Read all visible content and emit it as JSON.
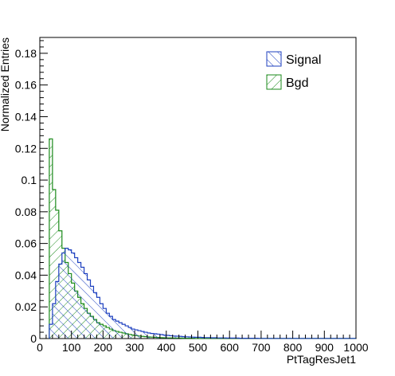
{
  "chart_data": {
    "type": "histogram",
    "title": "",
    "xlabel": "PtTagResJet1",
    "ylabel": "Normalized Entries",
    "xlim": [
      0,
      1000
    ],
    "ylim": [
      0,
      0.19
    ],
    "xticks": [
      0,
      100,
      200,
      300,
      400,
      500,
      600,
      700,
      800,
      900,
      1000
    ],
    "xtick_labels": [
      "0",
      "100",
      "200",
      "300",
      "400",
      "500",
      "600",
      "700",
      "800",
      "900",
      "1000"
    ],
    "yticks": [
      0,
      0.02,
      0.04,
      0.06,
      0.08,
      0.1,
      0.12,
      0.14,
      0.16,
      0.18
    ],
    "ytick_labels": [
      "0",
      "0.02",
      "0.04",
      "0.06",
      "0.08",
      "0.1",
      "0.12",
      "0.14",
      "0.16",
      "0.18"
    ],
    "bin_width": 10,
    "bin_start": 30,
    "legend_position": "top-right",
    "series": [
      {
        "name": "Signal",
        "color": "#1c3fbf",
        "hatch": "backslash",
        "values": [
          0.009,
          0.022,
          0.036,
          0.047,
          0.054,
          0.057,
          0.056,
          0.054,
          0.051,
          0.048,
          0.045,
          0.041,
          0.037,
          0.033,
          0.029,
          0.026,
          0.022,
          0.019,
          0.016,
          0.014,
          0.012,
          0.011,
          0.01,
          0.009,
          0.008,
          0.007,
          0.006,
          0.0055,
          0.005,
          0.0045,
          0.004,
          0.0035,
          0.0032,
          0.003,
          0.0028,
          0.0025,
          0.0022,
          0.002,
          0.0018,
          0.0016,
          0.0015,
          0.0014,
          0.0012,
          0.0011,
          0.001,
          0.0009,
          0.0008,
          0.0008,
          0.0007,
          0.0006,
          0.0006,
          0.0005,
          0.0005,
          0.0004,
          0.0004,
          0.0004,
          0.0003,
          0.0003,
          0.0003,
          0.0003,
          0.0002,
          0.0002,
          0.0002,
          0.0002,
          0.0002,
          0.0002,
          0.0001,
          0.0001,
          0.0001,
          0.0001,
          0.0001,
          0.0001,
          0.0001,
          0.0001,
          0.0001,
          0.0001,
          0.0001,
          0.0001,
          0.0001,
          0.0001,
          0.0001,
          0.0001,
          0.0001,
          0.0001,
          0.0001,
          0.0001,
          0.0001,
          0.0001,
          0.0001,
          0.0001,
          0.0001,
          0.0001,
          0.0001,
          0.0001,
          0.0001,
          0.0001,
          0.0001
        ]
      },
      {
        "name": "Bgd",
        "color": "#1a8a1a",
        "hatch": "slash",
        "values": [
          0.126,
          0.094,
          0.081,
          0.068,
          0.057,
          0.048,
          0.041,
          0.035,
          0.03,
          0.026,
          0.022,
          0.019,
          0.016,
          0.014,
          0.012,
          0.01,
          0.009,
          0.008,
          0.007,
          0.006,
          0.005,
          0.0045,
          0.004,
          0.0035,
          0.003,
          0.0026,
          0.0022,
          0.0019,
          0.0016,
          0.0014,
          0.0012,
          0.001,
          0.0009,
          0.0008,
          0.0007,
          0.0006,
          0.0005,
          0.0004,
          0.0004,
          0.0003,
          0.0003,
          0.0003,
          0.0002,
          0.0002,
          0.0002,
          0.0002,
          0.0001,
          0.0001,
          0.0001,
          0.0001,
          0.0001,
          0.0001,
          0.0001,
          0.0001,
          0.0001,
          0.0001,
          0.0001,
          0.0001,
          0.0001,
          0.0001,
          0.0001,
          0.0001,
          0.0001,
          0.0001,
          0.0001,
          0.0001,
          0.0001,
          0.0001,
          0.0001,
          0.0001,
          0.0001,
          0.0001,
          0.0001,
          0.0001,
          0.0001,
          0.0001,
          0.0001,
          0.0001,
          0.0001,
          0.0001,
          0.0001,
          0.0001,
          0.0001,
          0.0001,
          0.0001,
          0.0001,
          0.0001,
          0.0001,
          0.0001,
          0.0001,
          0.0001,
          0.0001,
          0.0001,
          0.0001,
          0.0001,
          0.0001,
          0.0001
        ]
      }
    ]
  }
}
